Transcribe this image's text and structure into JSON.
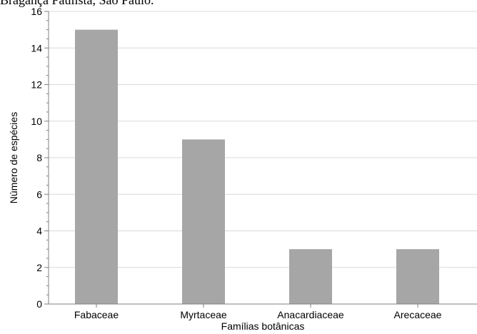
{
  "caption": "Bragança Paulista, São Paulo.",
  "chart_data": {
    "type": "bar",
    "title": "",
    "xlabel": "Famílias botânicas",
    "ylabel": "Número de espécies",
    "categories": [
      "Fabaceae",
      "Myrtaceae",
      "Anacardiaceae",
      "Arecaceae"
    ],
    "values": [
      15,
      9,
      3,
      3
    ],
    "ylim": [
      0,
      16
    ],
    "yticks": [
      0,
      2,
      4,
      6,
      8,
      10,
      12,
      14,
      16
    ],
    "grid": "horizontal",
    "legend": "none",
    "colors": {
      "bar": "#a6a6a6",
      "grid": "#d9d9d9",
      "axis": "#808080"
    }
  }
}
